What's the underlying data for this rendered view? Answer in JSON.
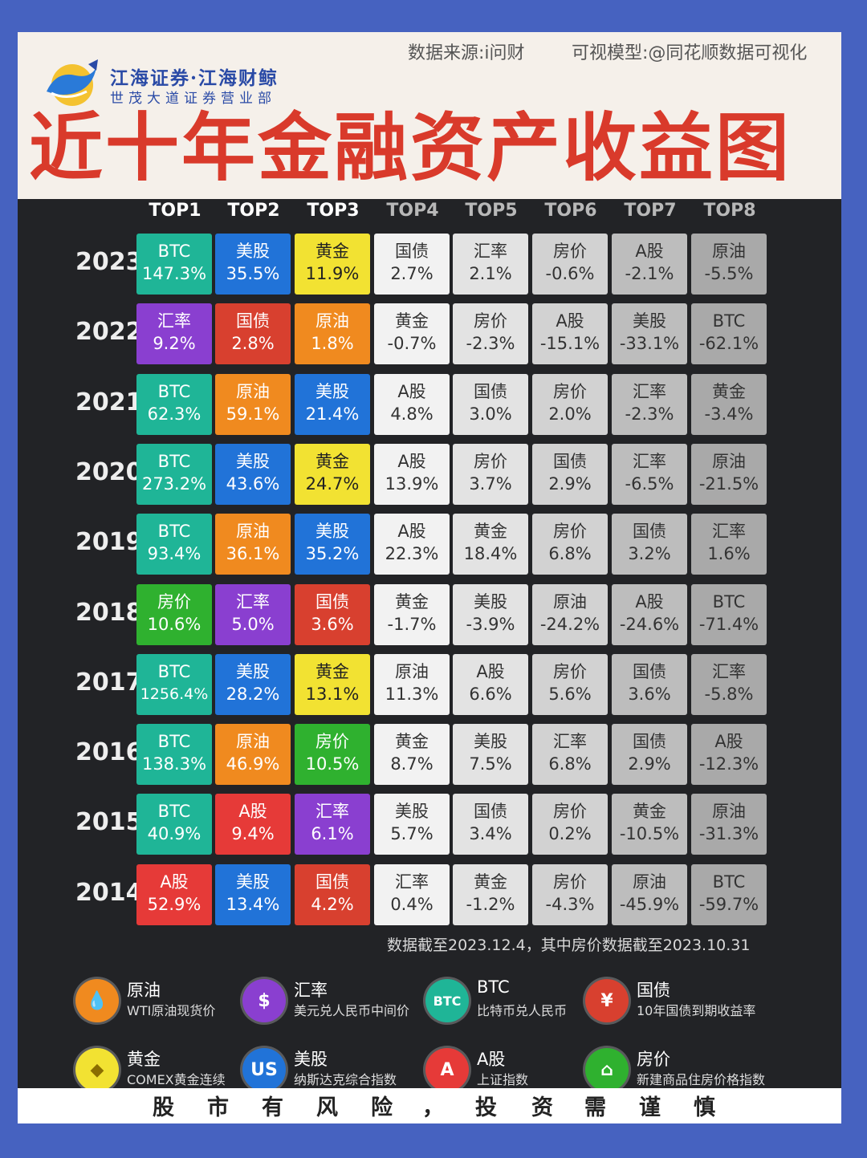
{
  "header": {
    "logo_line1": "江海证券·江海财鲸",
    "logo_line2": "世茂大道证券营业部",
    "source": "数据来源:i问财",
    "model": "可视模型:@同花顺数据可视化",
    "title": "近十年金融资产收益图"
  },
  "chart_data": {
    "type": "table",
    "title": "近十年金融资产收益图",
    "columns": [
      "TOP1",
      "TOP2",
      "TOP3",
      "TOP4",
      "TOP5",
      "TOP6",
      "TOP7",
      "TOP8"
    ],
    "rows": [
      {
        "year": "2023",
        "cells": [
          [
            "BTC",
            "147.3%"
          ],
          [
            "美股",
            "35.5%"
          ],
          [
            "黄金",
            "11.9%"
          ],
          [
            "国债",
            "2.7%"
          ],
          [
            "汇率",
            "2.1%"
          ],
          [
            "房价",
            "-0.6%"
          ],
          [
            "A股",
            "-2.1%"
          ],
          [
            "原油",
            "-5.5%"
          ]
        ]
      },
      {
        "year": "2022",
        "cells": [
          [
            "汇率",
            "9.2%"
          ],
          [
            "国债",
            "2.8%"
          ],
          [
            "原油",
            "1.8%"
          ],
          [
            "黄金",
            "-0.7%"
          ],
          [
            "房价",
            "-2.3%"
          ],
          [
            "A股",
            "-15.1%"
          ],
          [
            "美股",
            "-33.1%"
          ],
          [
            "BTC",
            "-62.1%"
          ]
        ]
      },
      {
        "year": "2021",
        "cells": [
          [
            "BTC",
            "62.3%"
          ],
          [
            "原油",
            "59.1%"
          ],
          [
            "美股",
            "21.4%"
          ],
          [
            "A股",
            "4.8%"
          ],
          [
            "国债",
            "3.0%"
          ],
          [
            "房价",
            "2.0%"
          ],
          [
            "汇率",
            "-2.3%"
          ],
          [
            "黄金",
            "-3.4%"
          ]
        ]
      },
      {
        "year": "2020",
        "cells": [
          [
            "BTC",
            "273.2%"
          ],
          [
            "美股",
            "43.6%"
          ],
          [
            "黄金",
            "24.7%"
          ],
          [
            "A股",
            "13.9%"
          ],
          [
            "房价",
            "3.7%"
          ],
          [
            "国债",
            "2.9%"
          ],
          [
            "汇率",
            "-6.5%"
          ],
          [
            "原油",
            "-21.5%"
          ]
        ]
      },
      {
        "year": "2019",
        "cells": [
          [
            "BTC",
            "93.4%"
          ],
          [
            "原油",
            "36.1%"
          ],
          [
            "美股",
            "35.2%"
          ],
          [
            "A股",
            "22.3%"
          ],
          [
            "黄金",
            "18.4%"
          ],
          [
            "房价",
            "6.8%"
          ],
          [
            "国债",
            "3.2%"
          ],
          [
            "汇率",
            "1.6%"
          ]
        ]
      },
      {
        "year": "2018",
        "cells": [
          [
            "房价",
            "10.6%"
          ],
          [
            "汇率",
            "5.0%"
          ],
          [
            "国债",
            "3.6%"
          ],
          [
            "黄金",
            "-1.7%"
          ],
          [
            "美股",
            "-3.9%"
          ],
          [
            "原油",
            "-24.2%"
          ],
          [
            "A股",
            "-24.6%"
          ],
          [
            "BTC",
            "-71.4%"
          ]
        ]
      },
      {
        "year": "2017",
        "cells": [
          [
            "BTC",
            "1256.4%"
          ],
          [
            "美股",
            "28.2%"
          ],
          [
            "黄金",
            "13.1%"
          ],
          [
            "原油",
            "11.3%"
          ],
          [
            "A股",
            "6.6%"
          ],
          [
            "房价",
            "5.6%"
          ],
          [
            "国债",
            "3.6%"
          ],
          [
            "汇率",
            "-5.8%"
          ]
        ]
      },
      {
        "year": "2016",
        "cells": [
          [
            "BTC",
            "138.3%"
          ],
          [
            "原油",
            "46.9%"
          ],
          [
            "房价",
            "10.5%"
          ],
          [
            "黄金",
            "8.7%"
          ],
          [
            "美股",
            "7.5%"
          ],
          [
            "汇率",
            "6.8%"
          ],
          [
            "国债",
            "2.9%"
          ],
          [
            "A股",
            "-12.3%"
          ]
        ]
      },
      {
        "year": "2015",
        "cells": [
          [
            "BTC",
            "40.9%"
          ],
          [
            "A股",
            "9.4%"
          ],
          [
            "汇率",
            "6.1%"
          ],
          [
            "美股",
            "5.7%"
          ],
          [
            "国债",
            "3.4%"
          ],
          [
            "房价",
            "0.2%"
          ],
          [
            "黄金",
            "-10.5%"
          ],
          [
            "原油",
            "-31.3%"
          ]
        ]
      },
      {
        "year": "2014",
        "cells": [
          [
            "A股",
            "52.9%"
          ],
          [
            "美股",
            "13.4%"
          ],
          [
            "国债",
            "4.2%"
          ],
          [
            "汇率",
            "0.4%"
          ],
          [
            "黄金",
            "-1.2%"
          ],
          [
            "房价",
            "-4.3%"
          ],
          [
            "原油",
            "-45.9%"
          ],
          [
            "BTC",
            "-59.7%"
          ]
        ]
      }
    ],
    "asset_colors": {
      "BTC": "#1fb597",
      "美股": "#2173d8",
      "黄金": "#f2e232",
      "汇率": "#8a3fd0",
      "国债": "#d8402f",
      "原油": "#f08a1f",
      "房价": "#2fb12f",
      "A股": "#e63a38"
    },
    "neutral_colors": [
      "#f2f2f2",
      "#e3e3e3",
      "#d2d2d2",
      "#bdbdbd",
      "#a9a9a9"
    ]
  },
  "note": "数据截至2023.12.4，其中房价数据截至2023.10.31",
  "legend": [
    {
      "name": "原油",
      "desc": "WTI原油现货价",
      "icon": "oil-drop-icon",
      "color": "#f08a1f",
      "glyph": "💧"
    },
    {
      "name": "汇率",
      "desc": "美元兑人民币中间价",
      "icon": "dollar-icon",
      "color": "#8a3fd0",
      "glyph": "$"
    },
    {
      "name": "BTC",
      "desc": "比特币兑人民币",
      "icon": "btc-icon",
      "color": "#1fb597",
      "glyph": "BTC"
    },
    {
      "name": "国债",
      "desc": "10年国债到期收益率",
      "icon": "bond-icon",
      "color": "#d8402f",
      "glyph": "¥"
    },
    {
      "name": "黄金",
      "desc": "COMEX黄金连续",
      "icon": "gold-icon",
      "color": "#f2e232",
      "glyph": "◆"
    },
    {
      "name": "美股",
      "desc": "纳斯达克综合指数",
      "icon": "us-icon",
      "color": "#2173d8",
      "glyph": "US"
    },
    {
      "name": "A股",
      "desc": "上证指数",
      "icon": "a-share-icon",
      "color": "#e63a38",
      "glyph": "A"
    },
    {
      "name": "房价",
      "desc": "新建商品住房价格指数",
      "icon": "house-icon",
      "color": "#2fb12f",
      "glyph": "⌂"
    }
  ],
  "footer": "股市有风险，投资需谨慎"
}
